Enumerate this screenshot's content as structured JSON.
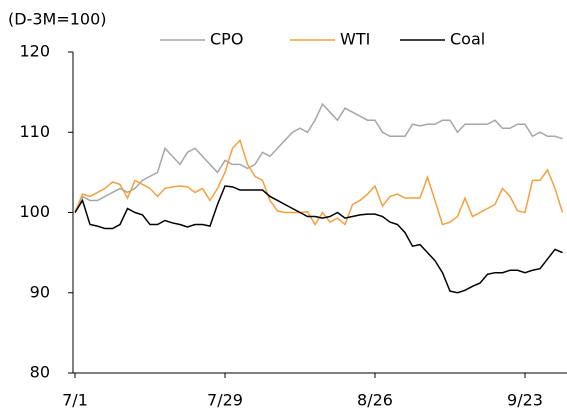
{
  "chart_data": {
    "type": "line",
    "unit_label": "(D-3M=100)",
    "categories": [
      "7/1",
      null,
      null,
      null,
      null,
      null,
      null,
      null,
      null,
      null,
      null,
      null,
      null,
      null,
      null,
      null,
      null,
      null,
      null,
      null,
      "7/29",
      null,
      null,
      null,
      null,
      null,
      null,
      null,
      null,
      null,
      null,
      null,
      null,
      null,
      null,
      null,
      null,
      null,
      null,
      null,
      "8/26",
      null,
      null,
      null,
      null,
      null,
      null,
      null,
      null,
      null,
      null,
      null,
      null,
      null,
      null,
      null,
      null,
      null,
      null,
      null,
      "9/23",
      null,
      null,
      null,
      null,
      null
    ],
    "series": [
      {
        "name": "CPO",
        "color": "#a6a6a6",
        "values": [
          100,
          102,
          101.5,
          101.5,
          102,
          102.5,
          103,
          102.5,
          103,
          104,
          104.5,
          105,
          108,
          107,
          106,
          107.5,
          108,
          107,
          106,
          105,
          106.5,
          106,
          106,
          105.5,
          106,
          107.5,
          107,
          108,
          109,
          110,
          110.5,
          110,
          111.5,
          113.5,
          112.5,
          111.5,
          113,
          112.5,
          112,
          111.5,
          111.5,
          110,
          109.5,
          109.5,
          109.5,
          111,
          110.8,
          111,
          111,
          111.5,
          111.5,
          110,
          111,
          111,
          111,
          111,
          111.5,
          110.5,
          110.5,
          111,
          111,
          109.5,
          110,
          109.5,
          109.5,
          109.2
        ]
      },
      {
        "name": "WTI",
        "color": "#f4a040",
        "values": [
          100,
          102.3,
          102,
          102.5,
          103,
          103.8,
          103.5,
          101.8,
          104,
          103.5,
          103,
          102,
          103,
          103.2,
          103.3,
          103.2,
          102.5,
          103,
          101.5,
          103,
          105,
          108,
          109,
          106,
          104.5,
          104,
          101.5,
          100.2,
          100,
          100,
          100,
          100.1,
          98.5,
          100,
          98.8,
          99.3,
          98.5,
          101,
          101.5,
          102.3,
          103.3,
          100.8,
          102,
          102.3,
          101.8,
          101.8,
          101.8,
          104.4,
          101.5,
          98.5,
          98.8,
          99.5,
          101.8,
          99.5,
          100,
          100.5,
          101,
          103,
          102,
          100.2,
          100,
          104,
          104,
          105.3,
          103,
          100
        ]
      },
      {
        "name": "Coal",
        "color": "#000000",
        "values": [
          100,
          101.5,
          98.5,
          98.3,
          98,
          98,
          98.5,
          100.5,
          100,
          99.7,
          98.5,
          98.5,
          99,
          98.7,
          98.5,
          98.2,
          98.5,
          98.5,
          98.3,
          101,
          103.3,
          103.2,
          102.8,
          102.8,
          102.8,
          102.8,
          102,
          101.5,
          101,
          100.5,
          100,
          99.5,
          99.5,
          99.3,
          99.5,
          100,
          99.3,
          99.5,
          99.7,
          99.8,
          99.8,
          99.5,
          98.8,
          98.5,
          97.5,
          95.8,
          96,
          95,
          94,
          92.5,
          90.2,
          90,
          90.3,
          90.8,
          91.2,
          92.3,
          92.5,
          92.5,
          92.8,
          92.8,
          92.5,
          92.8,
          93,
          94.2,
          95.4,
          95
        ]
      }
    ],
    "ylim": [
      80,
      120
    ],
    "yticks": [
      80,
      90,
      100,
      110,
      120
    ],
    "grid": false,
    "legend": "top"
  }
}
